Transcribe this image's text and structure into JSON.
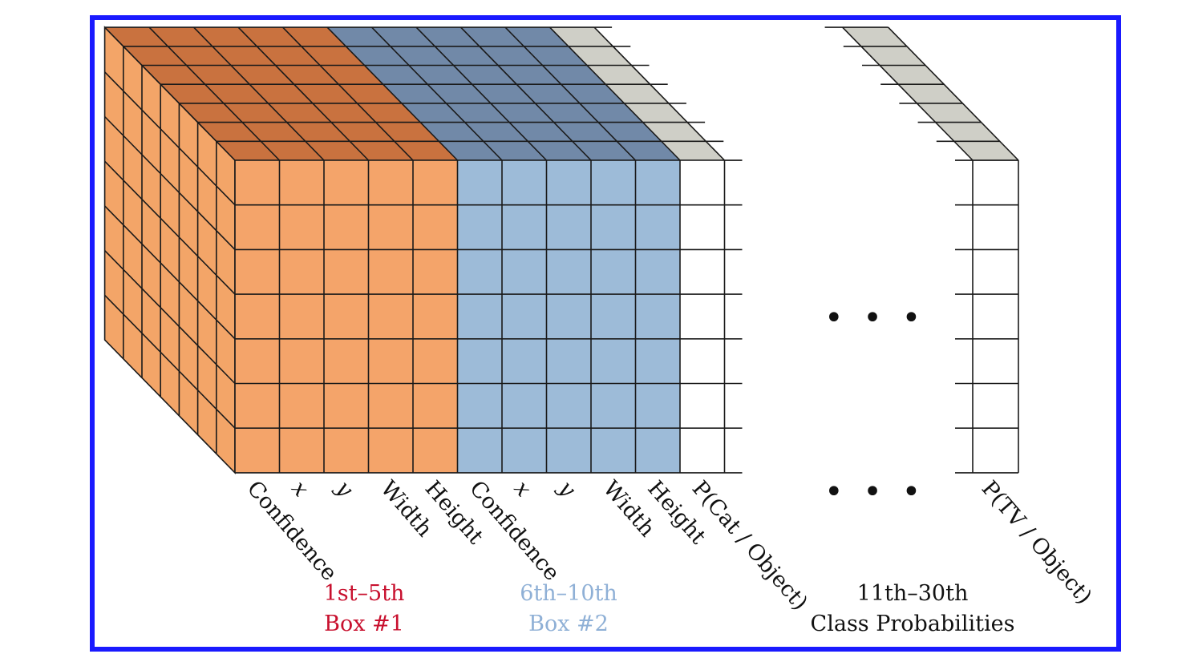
{
  "colors": {
    "border": "#1a1aff",
    "box1_front": "#f4a46a",
    "box1_top": "#c9723f",
    "box1_side": "#f3a568",
    "box2_front": "#9dbbd8",
    "box2_top": "#7189a8",
    "class_top": "#cfcfc7",
    "grid_line": "#1a1a1a",
    "box1_caption": "#c8102e",
    "box2_caption": "#8fb0d6",
    "class_caption": "#111111"
  },
  "channel_labels": [
    {
      "text": "Confidence",
      "italic": false
    },
    {
      "text": "x",
      "italic": true
    },
    {
      "text": "y",
      "italic": true
    },
    {
      "text": "Width",
      "italic": false
    },
    {
      "text": "Height",
      "italic": false
    },
    {
      "text": "Confidence",
      "italic": false
    },
    {
      "text": "x",
      "italic": true
    },
    {
      "text": "y",
      "italic": true
    },
    {
      "text": "Width",
      "italic": false
    },
    {
      "text": "Height",
      "italic": false
    },
    {
      "text": "P(Cat / Object)",
      "italic": false
    }
  ],
  "last_label": "P(TV / Object)",
  "ellipsis": "• • •",
  "captions": {
    "box1": {
      "line1": "1st–5th",
      "line2": "Box #1"
    },
    "box2": {
      "line1": "6th–10th",
      "line2": "Box #2"
    },
    "classes": {
      "line1": "11th–30th",
      "line2": "Class Probabilities"
    }
  }
}
